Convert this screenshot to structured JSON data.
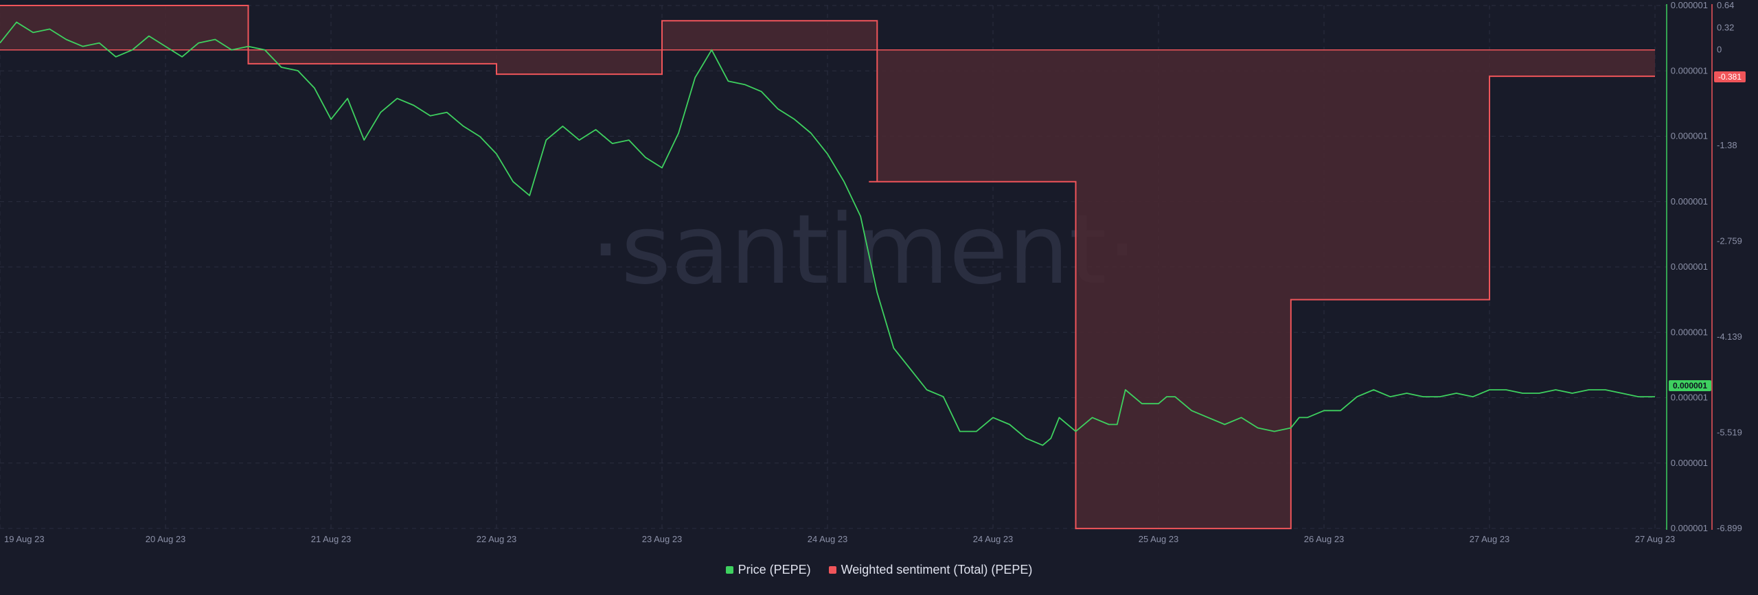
{
  "watermark": "·santiment·",
  "colors": {
    "background": "#181b29",
    "price": "#3ed15f",
    "sentiment": "#f0555a",
    "sentiment_fill": "#4a2831",
    "grid": "#2a2e40",
    "tick_text": "#8c91a8"
  },
  "legend": [
    {
      "label": "Price (PEPE)",
      "color": "#3ed15f"
    },
    {
      "label": "Weighted sentiment (Total) (PEPE)",
      "color": "#f0555a"
    }
  ],
  "chart_data": {
    "type": "line",
    "x_ticks": [
      "19 Aug 23",
      "20 Aug 23",
      "21 Aug 23",
      "22 Aug 23",
      "23 Aug 23",
      "24 Aug 23",
      "24 Aug 23",
      "25 Aug 23",
      "26 Aug 23",
      "27 Aug 23",
      "27 Aug 23"
    ],
    "price_axis": {
      "tick_labels": [
        "0.000001",
        "0.000001",
        "0.000001",
        "0.000001",
        "0.000001",
        "0.000001",
        "0.000001",
        "0.000001",
        "0.000001"
      ],
      "current_label": "0.000001"
    },
    "sentiment_axis": {
      "tick_labels": [
        "0.64",
        "0.32",
        "0",
        "-1.38",
        "-2.759",
        "-4.139",
        "-5.519",
        "-6.899"
      ],
      "tick_values": [
        0.64,
        0.32,
        0,
        -1.38,
        -2.759,
        -4.139,
        -5.519,
        -6.899
      ],
      "range": [
        -6.899,
        0.64
      ],
      "current_label": "-0.381"
    },
    "grid": true,
    "legend_position": "bottom-center",
    "series": [
      {
        "name": "Weighted sentiment (Total) (PEPE)",
        "style": "step-area",
        "x": [
          0,
          1.5,
          2.2,
          3.0,
          4.0,
          5.0,
          5.3,
          5.25,
          5.8,
          6.3,
          6.5,
          7.6,
          7.8,
          8.6,
          9.0,
          10.0
        ],
        "y": [
          0.64,
          -0.2,
          -0.2,
          -0.35,
          0.42,
          0.42,
          -1.9,
          -1.9,
          -1.9,
          -1.9,
          -6.9,
          -6.9,
          -3.6,
          -3.6,
          -0.38,
          -0.38
        ],
        "baseline": 0
      },
      {
        "name": "Price (PEPE)",
        "style": "line",
        "x": [
          0.0,
          0.1,
          0.2,
          0.3,
          0.4,
          0.5,
          0.6,
          0.7,
          0.8,
          0.9,
          1.0,
          1.1,
          1.2,
          1.3,
          1.4,
          1.5,
          1.6,
          1.7,
          1.8,
          1.9,
          2.0,
          2.1,
          2.2,
          2.3,
          2.4,
          2.5,
          2.6,
          2.7,
          2.8,
          2.9,
          3.0,
          3.1,
          3.2,
          3.3,
          3.4,
          3.5,
          3.6,
          3.7,
          3.8,
          3.9,
          4.0,
          4.1,
          4.2,
          4.3,
          4.4,
          4.5,
          4.6,
          4.7,
          4.8,
          4.9,
          5.0,
          5.1,
          5.2,
          5.3,
          5.4,
          5.5,
          5.6,
          5.7,
          5.8,
          5.9,
          6.0,
          6.1,
          6.2,
          6.3,
          6.35,
          6.4,
          6.5,
          6.6,
          6.7,
          6.75,
          6.8,
          6.9,
          7.0,
          7.05,
          7.1,
          7.2,
          7.3,
          7.4,
          7.5,
          7.6,
          7.7,
          7.8,
          7.85,
          7.9,
          8.0,
          8.1,
          8.2,
          8.3,
          8.4,
          8.5,
          8.6,
          8.7,
          8.8,
          8.9,
          9.0,
          9.1,
          9.2,
          9.3,
          9.4,
          9.5,
          9.6,
          9.7,
          9.8,
          9.9,
          10.0
        ],
        "y": [
          0.1,
          0.4,
          0.25,
          0.3,
          0.15,
          0.05,
          0.1,
          -0.1,
          0.0,
          0.2,
          0.05,
          -0.1,
          0.1,
          0.15,
          0.0,
          0.05,
          0.0,
          -0.25,
          -0.3,
          -0.55,
          -1.0,
          -0.7,
          -1.3,
          -0.9,
          -0.7,
          -0.8,
          -0.95,
          -0.9,
          -1.1,
          -1.25,
          -1.5,
          -1.9,
          -2.1,
          -1.3,
          -1.1,
          -1.3,
          -1.15,
          -1.35,
          -1.3,
          -1.55,
          -1.7,
          -1.2,
          -0.4,
          0.0,
          -0.45,
          -0.5,
          -0.6,
          -0.85,
          -1.0,
          -1.2,
          -1.5,
          -1.9,
          -2.4,
          -3.5,
          -4.3,
          -4.6,
          -4.9,
          -5.0,
          -5.5,
          -5.5,
          -5.3,
          -5.4,
          -5.6,
          -5.7,
          -5.6,
          -5.3,
          -5.5,
          -5.3,
          -5.4,
          -5.4,
          -4.9,
          -5.1,
          -5.1,
          -5.0,
          -5.0,
          -5.2,
          -5.3,
          -5.4,
          -5.3,
          -5.45,
          -5.5,
          -5.45,
          -5.3,
          -5.3,
          -5.2,
          -5.2,
          -5.0,
          -4.9,
          -5.0,
          -4.95,
          -5.0,
          -5.0,
          -4.95,
          -5.0,
          -4.9,
          -4.9,
          -4.95,
          -4.95,
          -4.9,
          -4.95,
          -4.9,
          -4.9,
          -4.95,
          -5.0,
          -5.0
        ]
      }
    ]
  }
}
